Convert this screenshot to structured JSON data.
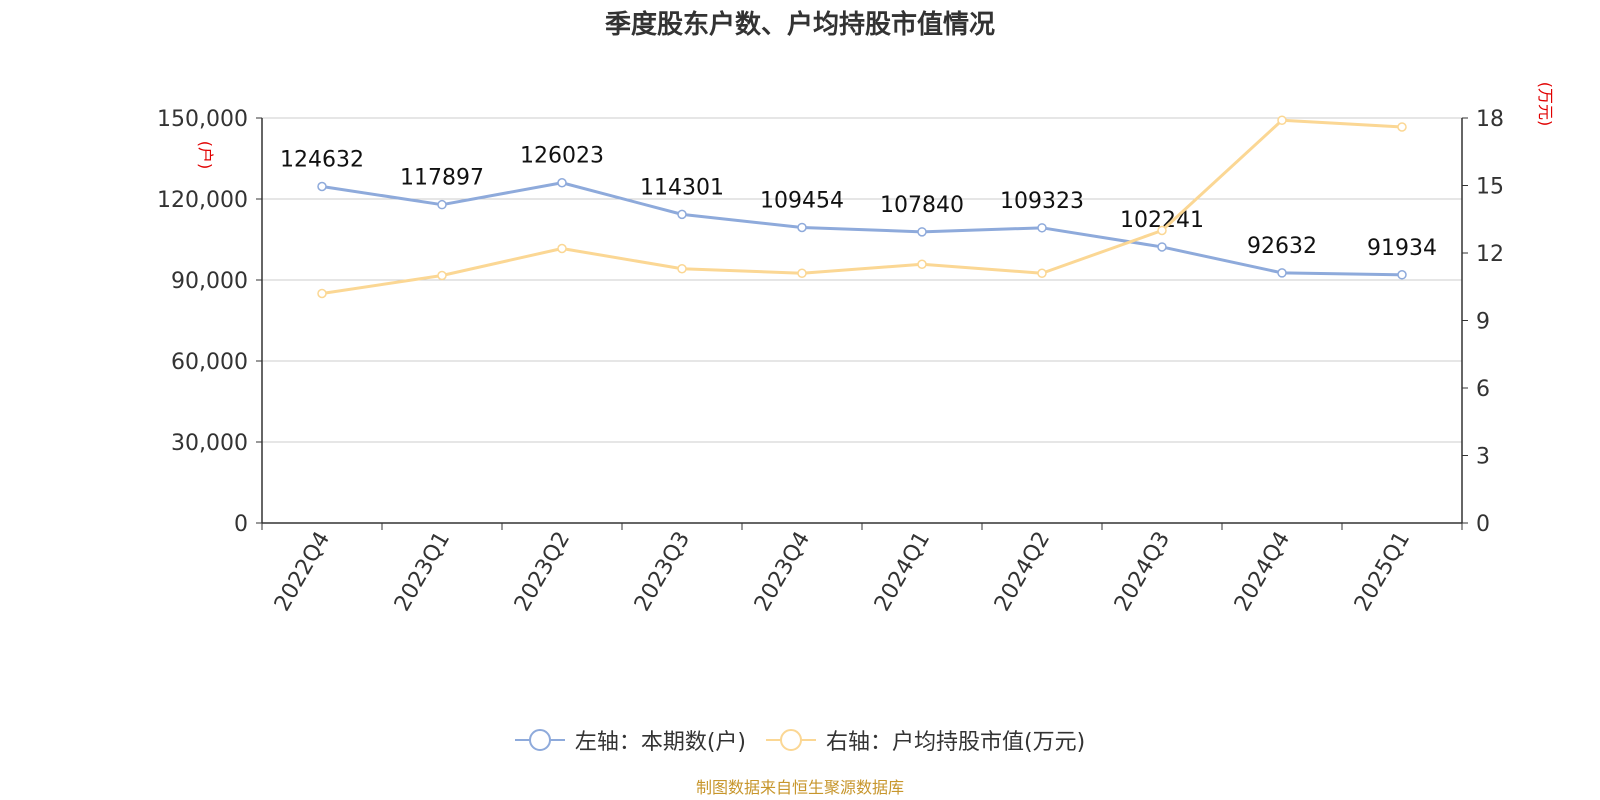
{
  "chart_data": {
    "type": "line",
    "title": "季度股东户数、户均持股市值情况",
    "categories": [
      "2022Q4",
      "2023Q1",
      "2023Q2",
      "2023Q3",
      "2023Q4",
      "2024Q1",
      "2024Q2",
      "2024Q3",
      "2024Q4",
      "2025Q1"
    ],
    "left_axis": {
      "unit_label": "(户)",
      "ylim": [
        0,
        150000
      ],
      "ticks": [
        "0",
        "30,000",
        "60,000",
        "90,000",
        "120,000",
        "150,000"
      ]
    },
    "right_axis": {
      "unit_label": "(万元)",
      "ylim": [
        0,
        18
      ],
      "ticks": [
        "0",
        "3",
        "6",
        "9",
        "12",
        "15",
        "18"
      ]
    },
    "series": [
      {
        "name": "左轴：本期数(户)",
        "axis": "left",
        "color": "#8eaadb",
        "values": [
          124632,
          117897,
          126023,
          114301,
          109454,
          107840,
          109323,
          102241,
          92632,
          91934
        ],
        "data_labels": [
          "124632",
          "117897",
          "126023",
          "114301",
          "109454",
          "107840",
          "109323",
          "102241",
          "92632",
          "91934"
        ]
      },
      {
        "name": "右轴：户均持股市值(万元)",
        "axis": "right",
        "color": "#fbd794",
        "values": [
          10.2,
          11.0,
          12.2,
          11.3,
          11.1,
          11.5,
          11.1,
          13.0,
          17.9,
          17.6
        ]
      }
    ],
    "grid": true,
    "legend_position": "bottom-center"
  },
  "footer": {
    "source": "制图数据来自恒生聚源数据库"
  }
}
